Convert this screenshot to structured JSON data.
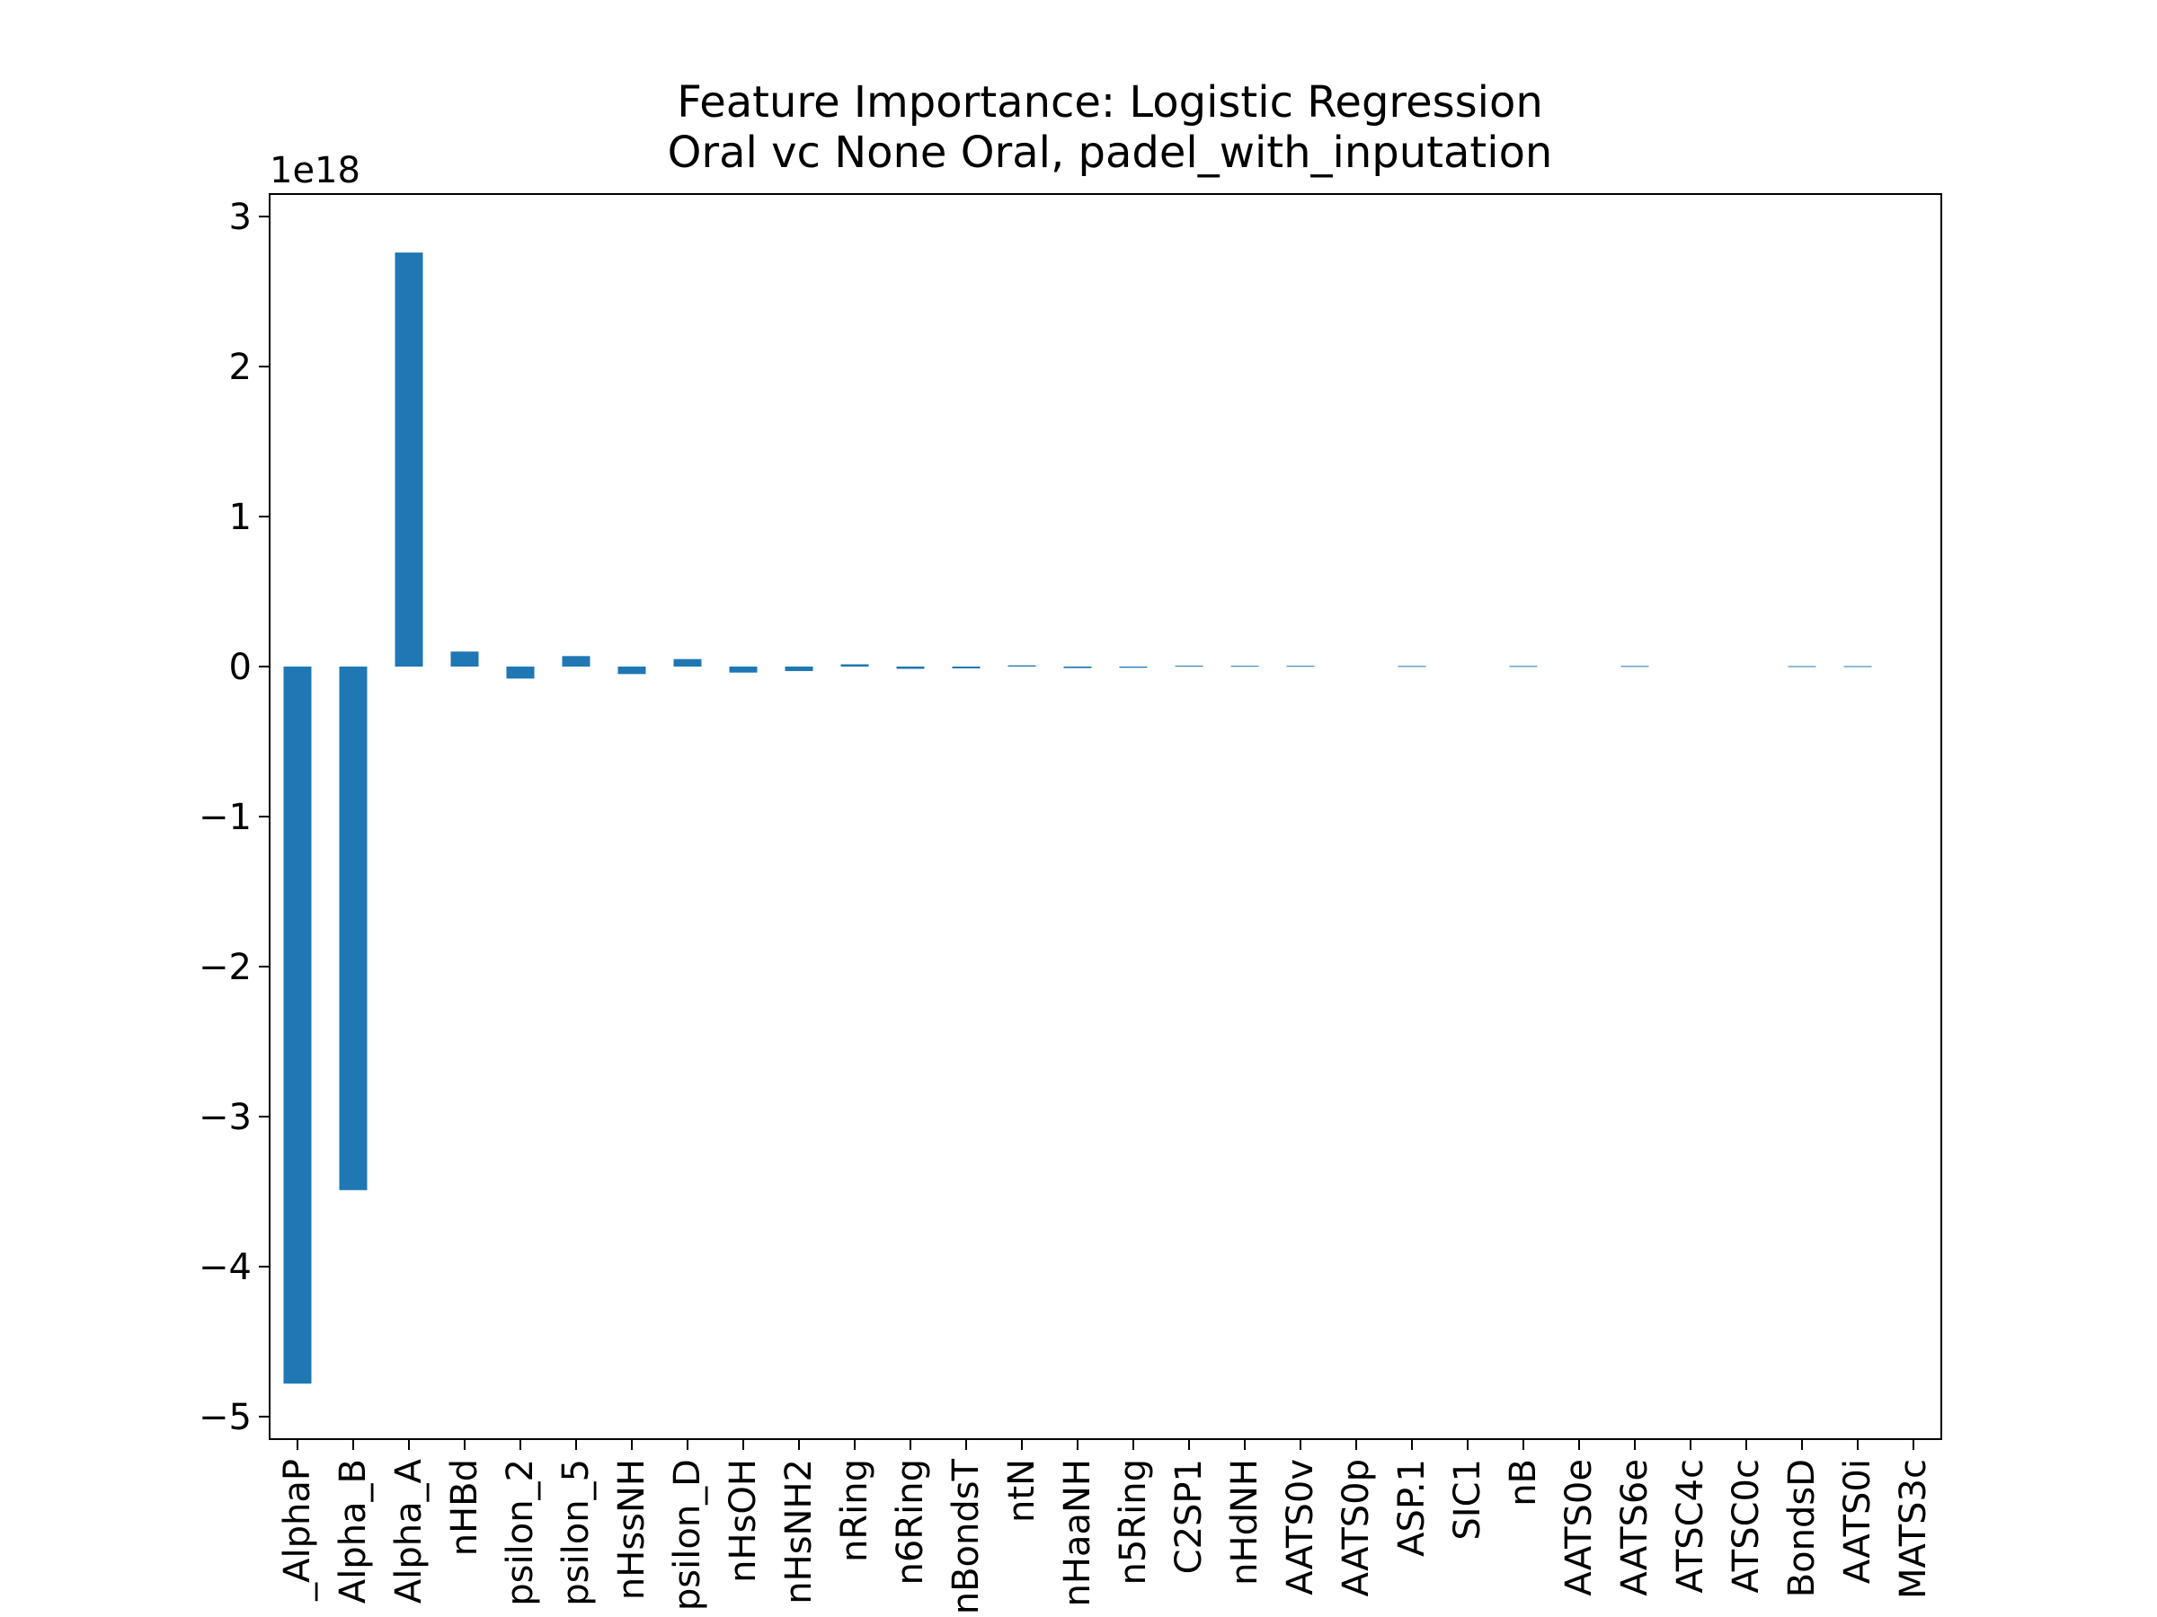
{
  "chart_data": {
    "type": "bar",
    "title": "Feature Importance: Logistic Regression",
    "subtitle": "Oral vc None Oral, padel_with_inputation",
    "xlabel": "",
    "ylabel": "",
    "y_offset_label": "1e18",
    "y_scale": 1e+18,
    "ylim": [
      -5.15,
      3.15
    ],
    "yticks": [
      3,
      2,
      1,
      0,
      -1,
      -2,
      -3,
      -4,
      -5
    ],
    "ytick_labels": [
      "3",
      "2",
      "1",
      "0",
      "−1",
      "−2",
      "−3",
      "−4",
      "−5"
    ],
    "grid": false,
    "legend": "none",
    "bar_color": "#1f77b4",
    "categories": [
      "_AlphaP",
      "Alpha_B",
      "Alpha_A",
      "nHBd",
      "psilon_2",
      "psilon_5",
      "nHssNH",
      "psilon_D",
      "nHsOH",
      "nHsNH2",
      "nRing",
      "n6Ring",
      "nBondsT",
      "ntN",
      "nHaaNH",
      "n5Ring",
      "C2SP1",
      "nHdNH",
      "AATS0v",
      "AATS0p",
      "ASP.1",
      "SIC1",
      "nB",
      "AATS0e",
      "AATS6e",
      "ATSC4c",
      "ATSC0c",
      "BondsD",
      "AATS0i",
      "MATS3c"
    ],
    "values": [
      -4.78,
      -3.49,
      2.76,
      0.1,
      -0.08,
      0.07,
      -0.05,
      0.05,
      -0.04,
      -0.03,
      0.015,
      -0.015,
      -0.012,
      0.008,
      -0.01,
      -0.008,
      0.006,
      0.005,
      0.005,
      0.0,
      0.004,
      0.0,
      0.004,
      0.0,
      0.004,
      0.0,
      0.0,
      0.003,
      0.003,
      0.0
    ]
  }
}
